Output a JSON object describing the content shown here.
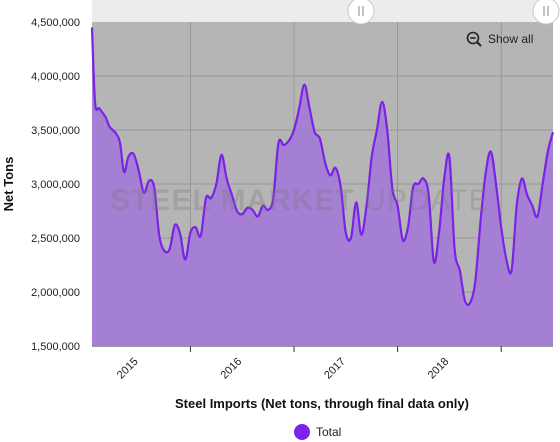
{
  "colors": {
    "plot_background": "#b5b5b5",
    "area_fill": "#a57fd3",
    "line": "#7a22e8",
    "navigator_bar": "#ececec",
    "gridline": "#8c8c8c"
  },
  "show_all_label": "Show all",
  "show_all_icon": "zoom-out-icon",
  "watermark": {
    "strong": "STEEL MARKET",
    "light": "UPDATE"
  },
  "chart_data": {
    "type": "area",
    "xlabel": "Steel Imports (Net tons, through final data only)",
    "ylabel": "Net Tons",
    "ylim": [
      1500000,
      4500000
    ],
    "yticks": [
      "1,500,000",
      "2,000,000",
      "2,500,000",
      "3,000,000",
      "3,500,000",
      "4,000,000",
      "4,500,000"
    ],
    "xticks": [
      "2015",
      "2016",
      "2017",
      "2018"
    ],
    "xlim": [
      2014.55,
      2019.0
    ],
    "grid": true,
    "legend_position": "bottom-center",
    "series": [
      {
        "name": "Total",
        "x": [
          2014.55,
          2014.58,
          2014.62,
          2014.68,
          2014.72,
          2014.78,
          2014.82,
          2014.86,
          2014.9,
          2014.95,
          2015.0,
          2015.05,
          2015.1,
          2015.15,
          2015.2,
          2015.25,
          2015.3,
          2015.35,
          2015.4,
          2015.45,
          2015.5,
          2015.55,
          2015.6,
          2015.65,
          2015.7,
          2015.75,
          2015.8,
          2015.85,
          2015.9,
          2015.95,
          2016.0,
          2016.05,
          2016.1,
          2016.15,
          2016.2,
          2016.25,
          2016.3,
          2016.35,
          2016.4,
          2016.45,
          2016.5,
          2016.55,
          2016.6,
          2016.65,
          2016.7,
          2016.75,
          2016.8,
          2016.85,
          2016.9,
          2016.95,
          2017.0,
          2017.05,
          2017.1,
          2017.15,
          2017.2,
          2017.25,
          2017.3,
          2017.35,
          2017.4,
          2017.45,
          2017.5,
          2017.55,
          2017.6,
          2017.65,
          2017.7,
          2017.75,
          2017.8,
          2017.85,
          2017.9,
          2017.95,
          2018.0,
          2018.05,
          2018.1,
          2018.15,
          2018.2,
          2018.25,
          2018.3,
          2018.35,
          2018.4,
          2018.45,
          2018.5,
          2018.55,
          2018.6,
          2018.65,
          2018.7,
          2018.75,
          2018.8,
          2018.85,
          2018.9,
          2018.95,
          2019.0
        ],
        "values": [
          4450000,
          3750000,
          3700000,
          3620000,
          3530000,
          3470000,
          3380000,
          3110000,
          3250000,
          3280000,
          3130000,
          2920000,
          3030000,
          2970000,
          2520000,
          2380000,
          2400000,
          2620000,
          2540000,
          2300000,
          2550000,
          2600000,
          2520000,
          2870000,
          2870000,
          3000000,
          3270000,
          3050000,
          2900000,
          2750000,
          2720000,
          2780000,
          2760000,
          2700000,
          2800000,
          2760000,
          2870000,
          3380000,
          3360000,
          3400000,
          3500000,
          3700000,
          3920000,
          3700000,
          3480000,
          3420000,
          3200000,
          3080000,
          3150000,
          2980000,
          2550000,
          2500000,
          2830000,
          2530000,
          2800000,
          3250000,
          3500000,
          3760000,
          3500000,
          2950000,
          2800000,
          2480000,
          2600000,
          2970000,
          3000000,
          3050000,
          2900000,
          2280000,
          2550000,
          3050000,
          3250000,
          2400000,
          2200000,
          1920000,
          1900000,
          2100000,
          2650000,
          3100000,
          3300000,
          3000000,
          2600000,
          2300000,
          2200000,
          2800000,
          3050000,
          2900000,
          2800000,
          2700000,
          3000000,
          3300000,
          3480000
        ]
      }
    ]
  }
}
